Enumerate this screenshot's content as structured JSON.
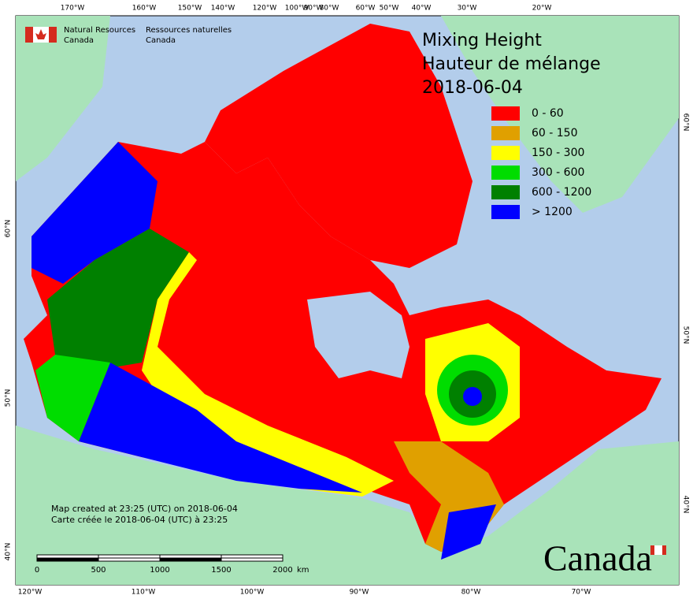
{
  "header": {
    "org_en": [
      "Natural Resources",
      "Canada"
    ],
    "org_fr": [
      "Ressources naturelles",
      "Canada"
    ]
  },
  "title": [
    "Mixing Height",
    "Hauteur de mélange",
    "2018-06-04"
  ],
  "legend": [
    {
      "label": "0 - 60",
      "color": "#ff0000"
    },
    {
      "label": "60 - 150",
      "color": "#e0a000"
    },
    {
      "label": "150 - 300",
      "color": "#ffff00"
    },
    {
      "label": "300 - 600",
      "color": "#00dd00"
    },
    {
      "label": "600 - 1200",
      "color": "#008000"
    },
    {
      "label": "> 1200",
      "color": "#0000ff"
    }
  ],
  "top_labels": [
    "170°W",
    "160°W",
    "150°W",
    "140°W",
    "120°W",
    "100°W",
    "90°W",
    "80°W",
    "60°W",
    "50°W",
    "40°W",
    "30°W",
    "20°W"
  ],
  "bottom_labels": [
    "120°W",
    "110°W",
    "100°W",
    "90°W",
    "80°W",
    "70°W"
  ],
  "left_labels": [
    "60°N",
    "50°N",
    "40°N"
  ],
  "right_labels": [
    "60°N",
    "50°N",
    "40°N"
  ],
  "credit": [
    "Map created at 23:25 (UTC) on 2018-06-04",
    "Carte créée le 2018-06-04 (UTC) à 23:25"
  ],
  "scale": {
    "ticks": [
      0,
      500,
      1000,
      1500,
      2000
    ],
    "unit": "km"
  },
  "wordmark": "Canada"
}
